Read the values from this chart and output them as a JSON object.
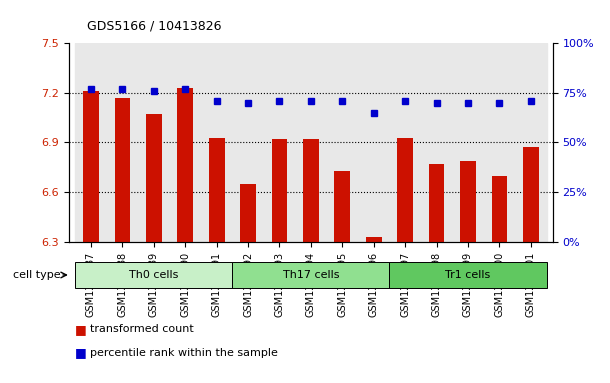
{
  "title": "GDS5166 / 10413826",
  "samples": [
    "GSM1350487",
    "GSM1350488",
    "GSM1350489",
    "GSM1350490",
    "GSM1350491",
    "GSM1350492",
    "GSM1350493",
    "GSM1350494",
    "GSM1350495",
    "GSM1350496",
    "GSM1350497",
    "GSM1350498",
    "GSM1350499",
    "GSM1350500",
    "GSM1350501"
  ],
  "bar_values": [
    7.21,
    7.17,
    7.07,
    7.23,
    6.93,
    6.65,
    6.92,
    6.92,
    6.73,
    6.33,
    6.93,
    6.77,
    6.79,
    6.7,
    6.87
  ],
  "percentile_values": [
    77,
    77,
    76,
    77,
    71,
    70,
    71,
    71,
    71,
    65,
    71,
    70,
    70,
    70,
    71
  ],
  "cell_types": [
    {
      "label": "Th0 cells",
      "start": 0,
      "end": 5,
      "color": "#c8f0c8"
    },
    {
      "label": "Th17 cells",
      "start": 5,
      "end": 10,
      "color": "#90e090"
    },
    {
      "label": "Tr1 cells",
      "start": 10,
      "end": 15,
      "color": "#60c860"
    }
  ],
  "ylim_left": [
    6.3,
    7.5
  ],
  "ylim_right": [
    0,
    100
  ],
  "yticks_left": [
    6.3,
    6.6,
    6.9,
    7.2,
    7.5
  ],
  "yticks_right": [
    0,
    25,
    50,
    75,
    100
  ],
  "ytick_labels_right": [
    "0%",
    "25%",
    "50%",
    "75%",
    "100%"
  ],
  "bar_color": "#cc1100",
  "dot_color": "#0000cc",
  "bar_bottom": 6.3,
  "legend_items": [
    {
      "color": "#cc1100",
      "label": "transformed count"
    },
    {
      "color": "#0000cc",
      "label": "percentile rank within the sample"
    }
  ],
  "cell_type_label": "cell type",
  "bg_color": "#e8e8e8",
  "tick_label_color_left": "#cc2200",
  "tick_label_color_right": "#0000cc"
}
